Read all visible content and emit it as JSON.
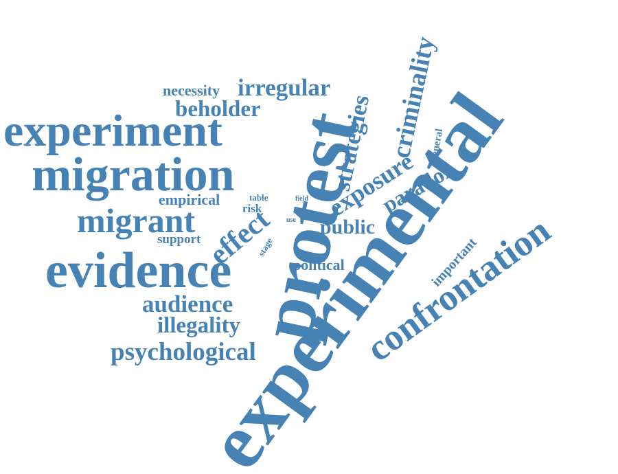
{
  "colors": {
    "word": "#4682b4",
    "background": "#ffffff"
  },
  "words": {
    "experimental": "experimental",
    "protest": "protest",
    "migration": "migration",
    "experiment": "experiment",
    "evidence": "evidence",
    "confrontation": "confrontation",
    "migrant": "migrant",
    "criminality": "criminality",
    "strategies": "strategies",
    "exposure": "exposure",
    "paradox": "paradox",
    "effect": "effect",
    "irregular": "irregular",
    "beholder": "beholder",
    "necessity": "necessity",
    "public": "public",
    "audience": "audience",
    "illegality": "illegality",
    "psychological": "psychological",
    "empirical": "empirical",
    "support": "support",
    "political": "political",
    "important": "important",
    "general": "general",
    "table": "table",
    "risk": "risk",
    "field": "field",
    "use": "use",
    "stage": "stage"
  }
}
